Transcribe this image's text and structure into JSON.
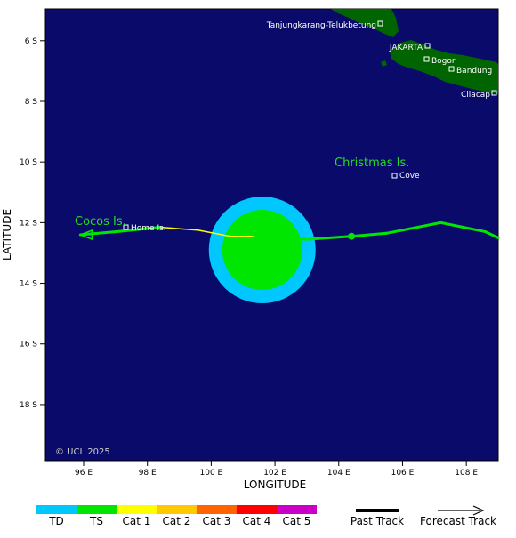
{
  "map": {
    "ocean_color": "#0a0a6b",
    "land_color": "#006400",
    "axis_x_label": "LONGITUDE",
    "axis_y_label": "LATITUDE",
    "lon_ticks": [
      "96 E",
      "98 E",
      "100 E",
      "102 E",
      "104 E",
      "106 E",
      "108 E"
    ],
    "lat_ticks": [
      "6 S",
      "8 S",
      "10 S",
      "12 S",
      "14 S",
      "16 S",
      "18 S"
    ],
    "copyright": "© UCL 2025",
    "islands": {
      "christmas": "Christmas Is.",
      "cocos": "Cocos Is."
    },
    "places": {
      "tanjung": "Tanjungkarang-Telukbetung",
      "jakarta": "JAKARTA",
      "bogor": "Bogor",
      "bandung": "Bandung",
      "cilacap": "Cilacap",
      "cove": "Cove",
      "home": "Home Is."
    }
  },
  "storm": {
    "position_lon": 101.6,
    "position_lat": 12.9,
    "wind_field_ts_color": "#00e600",
    "wind_field_td_color": "#00c8ff",
    "track": [
      {
        "lon": 109.0,
        "lat": 12.5,
        "cat": "TS"
      },
      {
        "lon": 108.6,
        "lat": 12.3,
        "cat": "TS"
      },
      {
        "lon": 107.2,
        "lat": 12.0,
        "cat": "TS"
      },
      {
        "lon": 105.5,
        "lat": 12.35,
        "cat": "TS"
      },
      {
        "lon": 104.4,
        "lat": 12.45,
        "cat": "TS"
      },
      {
        "lon": 103.0,
        "lat": 12.55,
        "cat": "TS"
      },
      {
        "lon": 102.0,
        "lat": 12.55,
        "cat": "TS"
      },
      {
        "lon": 101.3,
        "lat": 12.45,
        "cat": "TS"
      },
      {
        "lon": 100.6,
        "lat": 12.45,
        "cat": "Cat 1"
      },
      {
        "lon": 99.6,
        "lat": 12.25,
        "cat": "Cat 1"
      },
      {
        "lon": 98.4,
        "lat": 12.15,
        "cat": "Cat 1"
      },
      {
        "lon": 97.0,
        "lat": 12.3,
        "cat": "TS"
      },
      {
        "lon": 95.9,
        "lat": 12.4,
        "cat": "TS"
      }
    ],
    "current_marker_lon": 104.4,
    "current_marker_lat": 12.45
  },
  "legend": {
    "categories": [
      {
        "label": "TD",
        "color": "#00c8ff"
      },
      {
        "label": "TS",
        "color": "#00e600"
      },
      {
        "label": "Cat 1",
        "color": "#ffff00"
      },
      {
        "label": "Cat 2",
        "color": "#ffc800"
      },
      {
        "label": "Cat 3",
        "color": "#ff6400"
      },
      {
        "label": "Cat 4",
        "color": "#ff0000"
      },
      {
        "label": "Cat 5",
        "color": "#c800c8"
      }
    ],
    "past_track": "Past Track",
    "forecast_track": "Forecast Track"
  }
}
